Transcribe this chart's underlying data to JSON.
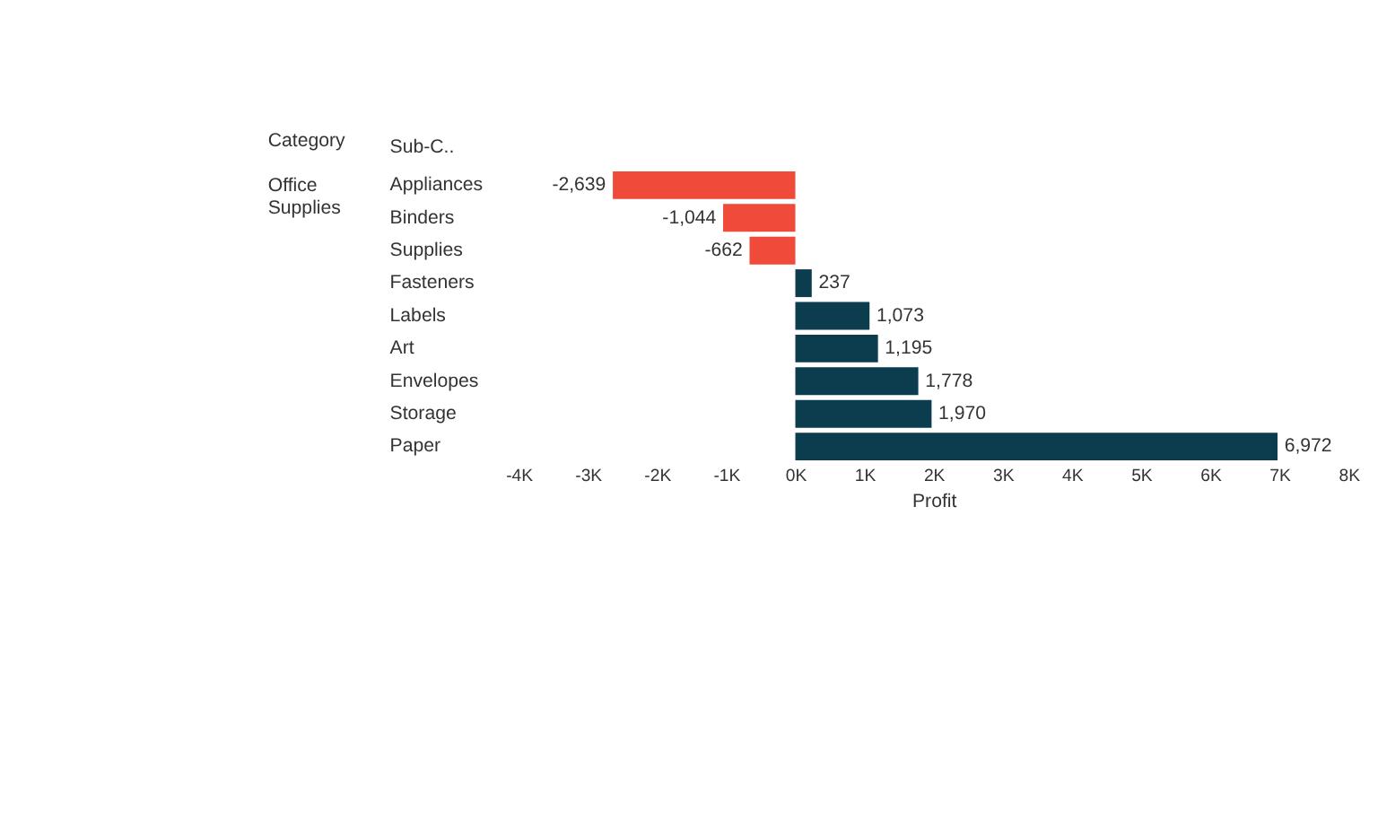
{
  "chart_data": {
    "type": "bar",
    "orientation": "horizontal",
    "xlabel": "Profit",
    "ylabel": "Sub-C..",
    "annotations": [
      "Category",
      "Office Supplies"
    ],
    "categories": [
      "Appliances",
      "Binders",
      "Supplies",
      "Fasteners",
      "Labels",
      "Art",
      "Envelopes",
      "Storage",
      "Paper"
    ],
    "values": [
      -2639,
      -1044,
      -662,
      237,
      1073,
      1195,
      1778,
      1970,
      6972
    ],
    "colors": [
      "#f04a3a",
      "#f04a3a",
      "#f04a3a",
      "#0b3d4e",
      "#0b3d4e",
      "#0b3d4e",
      "#0b3d4e",
      "#0b3d4e",
      "#0b3d4e"
    ],
    "value_labels": [
      "-2,639",
      "-1,044",
      "-662",
      "237",
      "1,073",
      "1,195",
      "1,778",
      "1,970",
      "6,972"
    ],
    "xlim": [
      -4000,
      8000
    ],
    "xticks": [
      {
        "value": -4000,
        "label": "-4K"
      },
      {
        "value": -3000,
        "label": "-3K"
      },
      {
        "value": -2000,
        "label": "-2K"
      },
      {
        "value": -1000,
        "label": "-1K"
      },
      {
        "value": 0,
        "label": "0K"
      },
      {
        "value": 1000,
        "label": "1K"
      },
      {
        "value": 2000,
        "label": "2K"
      },
      {
        "value": 3000,
        "label": "3K"
      },
      {
        "value": 4000,
        "label": "4K"
      },
      {
        "value": 5000,
        "label": "5K"
      },
      {
        "value": 6000,
        "label": "6K"
      },
      {
        "value": 7000,
        "label": "7K"
      },
      {
        "value": 8000,
        "label": "8K"
      }
    ],
    "grid": false
  }
}
